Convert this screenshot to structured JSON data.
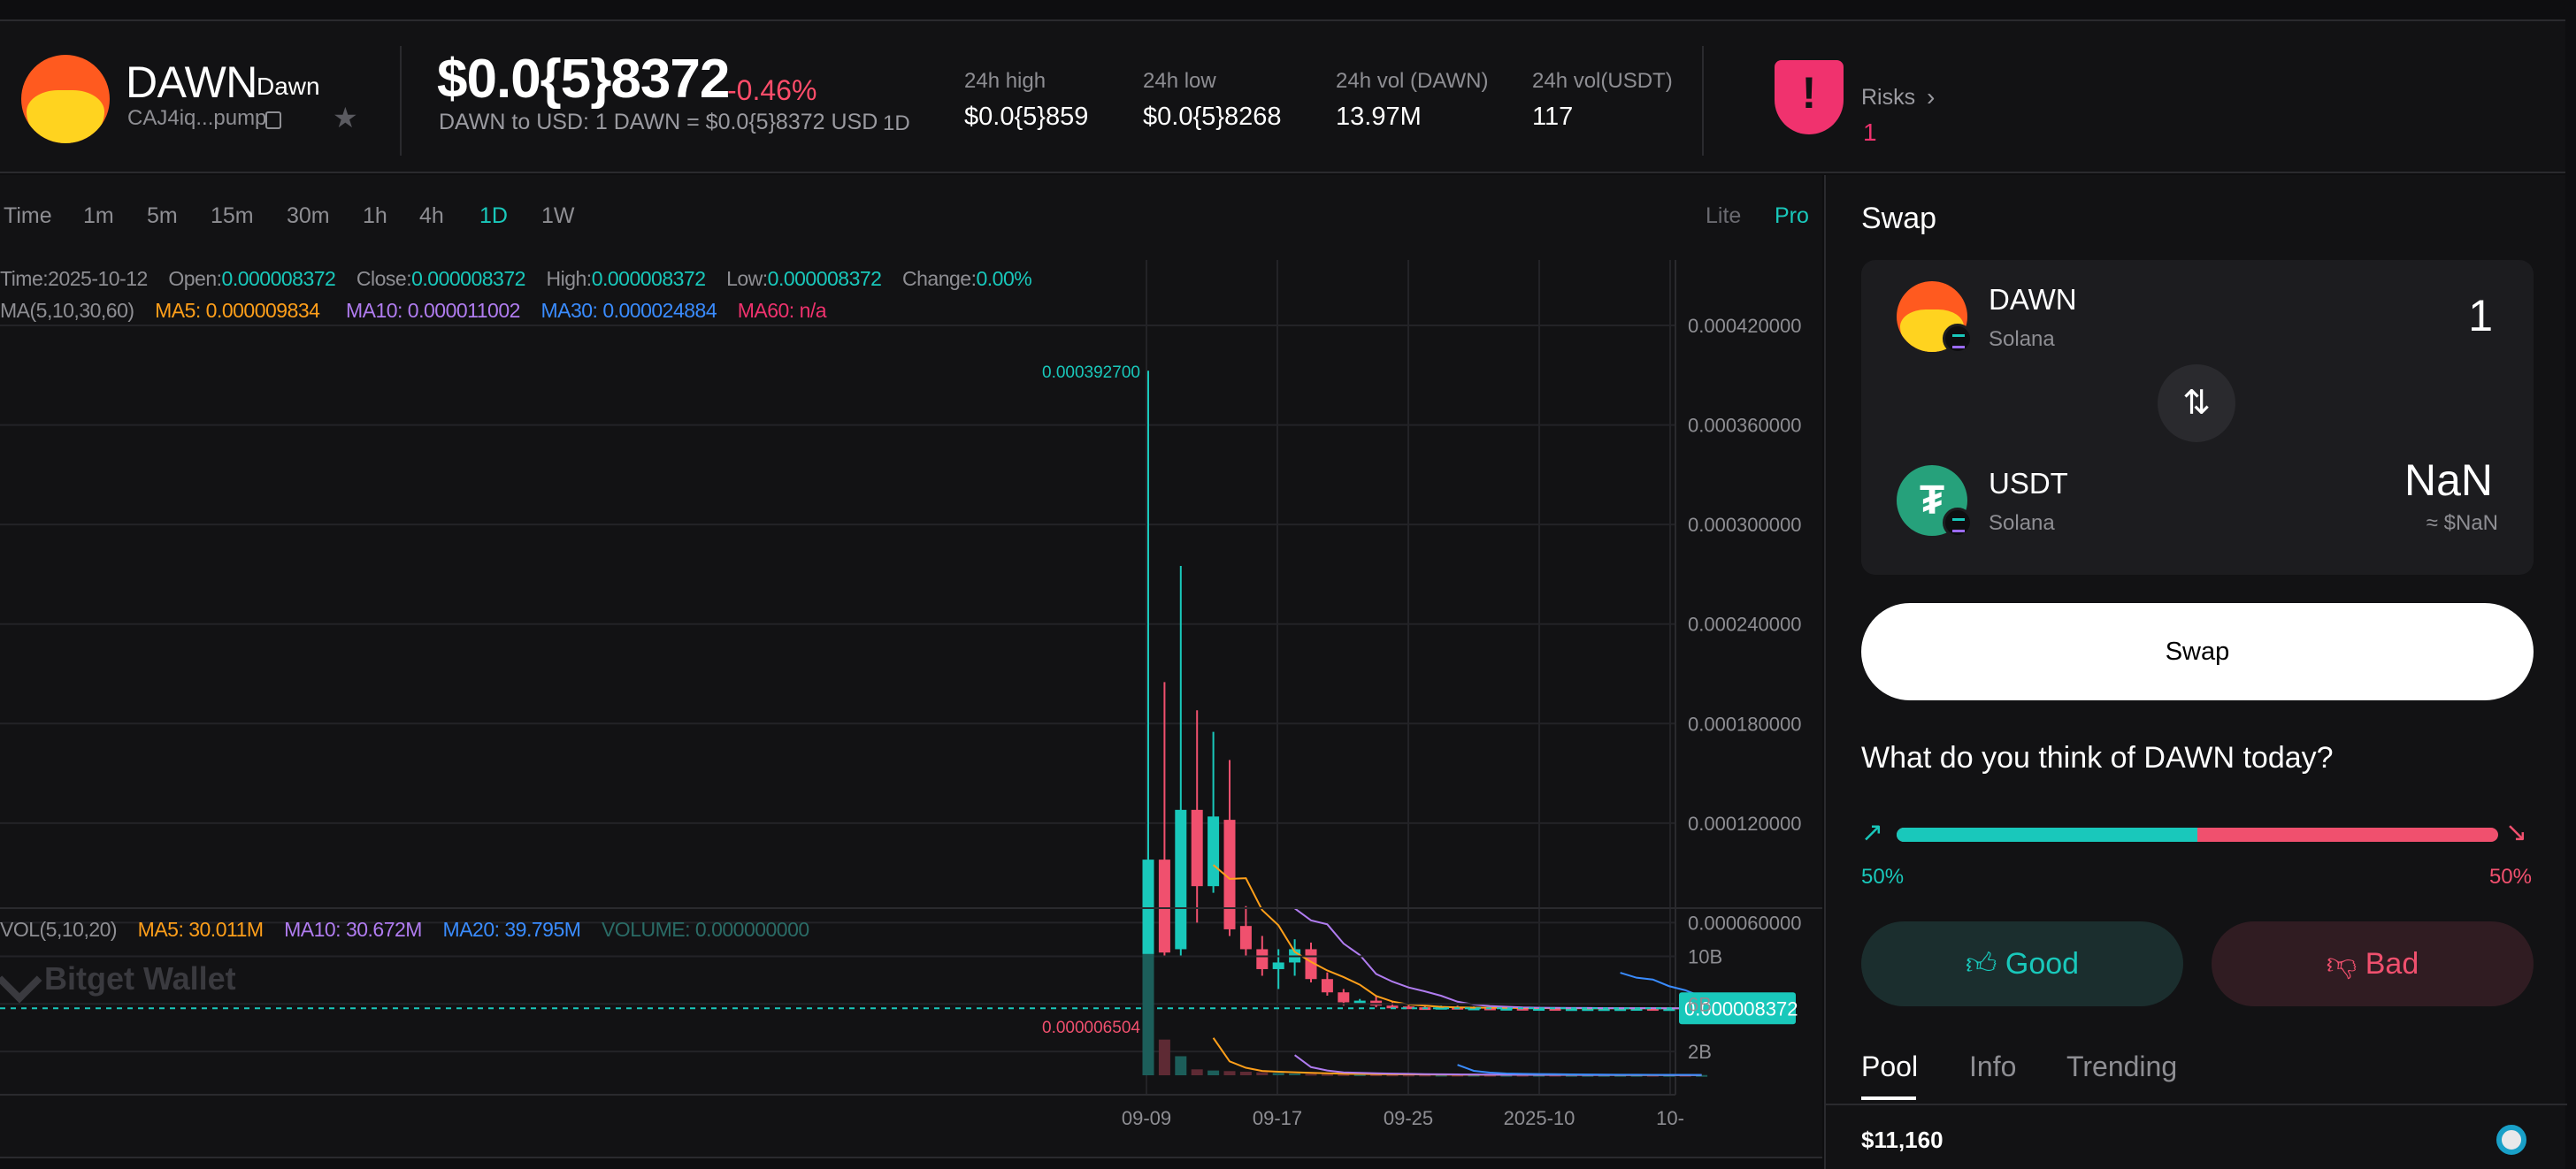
{
  "header": {
    "symbol": "DAWN",
    "name": "Dawn",
    "address": "CAJ4iq...pump",
    "price": "$0.0{5}8372",
    "change": "-0.46%",
    "price_sub": "DAWN to USD: 1 DAWN = $0.0{5}8372 USD",
    "interval": "1D",
    "stats": [
      {
        "label": "24h high",
        "value": "$0.0{5}859"
      },
      {
        "label": "24h low",
        "value": "$0.0{5}8268"
      },
      {
        "label": "24h vol (DAWN)",
        "value": "13.97M"
      },
      {
        "label": "24h vol(USDT)",
        "value": "117"
      }
    ],
    "risks_label": "Risks",
    "risks_value": "1"
  },
  "chart": {
    "timeframes": [
      "Time",
      "1m",
      "5m",
      "15m",
      "30m",
      "1h",
      "4h",
      "1D",
      "1W"
    ],
    "active_timeframe": "1D",
    "modes": [
      "Lite",
      "Pro"
    ],
    "active_mode": "Pro",
    "ohlc": {
      "time_label": "Time:",
      "time": "2025-10-12",
      "open_label": "Open:",
      "open": "0.000008372",
      "close_label": "Close:",
      "close": "0.000008372",
      "high_label": "High:",
      "high": "0.000008372",
      "low_label": "Low:",
      "low": "0.000008372",
      "change_label": "Change:",
      "change": "0.00%"
    },
    "ma": {
      "label": "MA(5,10,30,60)",
      "ma5": "MA5: 0.000009834",
      "ma10": "MA10: 0.000011002",
      "ma30": "MA30: 0.000024884",
      "ma60": "MA60: n/a"
    },
    "vol": {
      "label": "VOL(5,10,20)",
      "ma5": "MA5: 30.011M",
      "ma10": "MA10: 30.672M",
      "ma20": "MA20: 39.795M",
      "volume": "VOLUME: 0.000000000"
    },
    "watermark": "Bitget Wallet",
    "colors": {
      "up": "#19c8bb",
      "down": "#f0506e",
      "ma5": "#ff9f1a",
      "ma10": "#b07cf0",
      "ma30": "#3a8cff",
      "ma60": "#f0326e"
    }
  },
  "chart_data": {
    "type": "candlestick",
    "price_axis": {
      "ticks": [
        "0.000420000",
        "0.000360000",
        "0.000300000",
        "0.000240000",
        "0.000180000",
        "0.000120000",
        "0.000060000"
      ],
      "range": [
        0,
        0.00042
      ],
      "current_price_label": "0.000008372"
    },
    "volume_axis": {
      "ticks": [
        "10B",
        "6B",
        "2B"
      ]
    },
    "x_ticks": [
      "09-09",
      "09-17",
      "09-25",
      "2025-10",
      "10-"
    ],
    "max_label": "0.000392700",
    "min_label": "0.000006504",
    "candles": [
      {
        "o": 7.5e-06,
        "h": 0.0003927,
        "l": 6.5e-06,
        "c": 9.8e-05
      },
      {
        "o": 9.8e-05,
        "h": 0.000205,
        "l": 4e-05,
        "c": 4.2e-05
      },
      {
        "o": 4.4e-05,
        "h": 0.000275,
        "l": 4e-05,
        "c": 0.000128
      },
      {
        "o": 0.000128,
        "h": 0.000188,
        "l": 6e-05,
        "c": 8.2e-05
      },
      {
        "o": 8.2e-05,
        "h": 0.000175,
        "l": 7.8e-05,
        "c": 0.000124
      },
      {
        "o": 0.000122,
        "h": 0.000158,
        "l": 5.2e-05,
        "c": 5.6e-05
      },
      {
        "o": 5.8e-05,
        "h": 7e-05,
        "l": 4e-05,
        "c": 4.4e-05
      },
      {
        "o": 4.4e-05,
        "h": 5.2e-05,
        "l": 2.8e-05,
        "c": 3.2e-05
      },
      {
        "o": 3.2e-05,
        "h": 4.4e-05,
        "l": 2e-05,
        "c": 3.6e-05
      },
      {
        "o": 3.6e-05,
        "h": 5e-05,
        "l": 2.8e-05,
        "c": 4.4e-05
      },
      {
        "o": 4.4e-05,
        "h": 4.8e-05,
        "l": 2.4e-05,
        "c": 2.6e-05
      },
      {
        "o": 2.6e-05,
        "h": 3e-05,
        "l": 1.6e-05,
        "c": 1.8e-05
      },
      {
        "o": 1.8e-05,
        "h": 2e-05,
        "l": 1e-05,
        "c": 1.2e-05
      },
      {
        "o": 1.2e-05,
        "h": 1.4e-05,
        "l": 1.1e-05,
        "c": 1.3e-05
      },
      {
        "o": 1.3e-05,
        "h": 1.6e-05,
        "l": 9e-06,
        "c": 1e-05
      },
      {
        "o": 1e-05,
        "h": 1.2e-05,
        "l": 8e-06,
        "c": 9.5e-06
      },
      {
        "o": 9.5e-06,
        "h": 1.1e-05,
        "l": 8e-06,
        "c": 9e-06
      },
      {
        "o": 9e-06,
        "h": 1.05e-05,
        "l": 8e-06,
        "c": 8.5e-06
      },
      {
        "o": 8.5e-06,
        "h": 1e-05,
        "l": 8e-06,
        "c": 9.2e-06
      },
      {
        "o": 9.2e-06,
        "h": 1e-05,
        "l": 8e-06,
        "c": 8.6e-06
      },
      {
        "o": 8.6e-06,
        "h": 9.5e-06,
        "l": 8e-06,
        "c": 8.8e-06
      },
      {
        "o": 8.8e-06,
        "h": 9.5e-06,
        "l": 8e-06,
        "c": 8.4e-06
      },
      {
        "o": 8.4e-06,
        "h": 9e-06,
        "l": 8e-06,
        "c": 8.6e-06
      },
      {
        "o": 8.6e-06,
        "h": 9e-06,
        "l": 8e-06,
        "c": 8.4e-06
      },
      {
        "o": 8.4e-06,
        "h": 9e-06,
        "l": 8e-06,
        "c": 8.5e-06
      },
      {
        "o": 8.5e-06,
        "h": 9e-06,
        "l": 8e-06,
        "c": 8.4e-06
      },
      {
        "o": 8.4e-06,
        "h": 8.8e-06,
        "l": 8e-06,
        "c": 8.4e-06
      },
      {
        "o": 8.4e-06,
        "h": 8.8e-06,
        "l": 8e-06,
        "c": 8.4e-06
      },
      {
        "o": 8.4e-06,
        "h": 8.8e-06,
        "l": 8e-06,
        "c": 8.4e-06
      },
      {
        "o": 8.4e-06,
        "h": 8.7e-06,
        "l": 8e-06,
        "c": 8.4e-06
      },
      {
        "o": 8.4e-06,
        "h": 8.7e-06,
        "l": 8e-06,
        "c": 8.5e-06
      },
      {
        "o": 8.5e-06,
        "h": 8.7e-06,
        "l": 8e-06,
        "c": 8.4e-06
      },
      {
        "o": 8.4e-06,
        "h": 8.6e-06,
        "l": 8.2e-06,
        "c": 8.4e-06
      },
      {
        "o": 8.4e-06,
        "h": 8.6e-06,
        "l": 8.2e-06,
        "c": 8.3e-06
      },
      {
        "o": 8.3e-06,
        "h": 8.6e-06,
        "l": 8.2e-06,
        "c": 8.4e-06
      }
    ],
    "volumes": [
      10.2,
      3.0,
      1.6,
      0.5,
      0.4,
      0.35,
      0.3,
      0.25,
      0.2,
      0.15,
      0.12,
      0.1,
      0.09,
      0.08,
      0.07,
      0.06,
      0.05,
      0.05,
      0.04,
      0.04,
      0.04,
      0.03,
      0.03,
      0.03,
      0.03,
      0.03,
      0.02,
      0.02,
      0.02,
      0.02,
      0.02,
      0.02,
      0.02,
      0.02,
      0.02
    ]
  },
  "swap": {
    "title": "Swap",
    "from": {
      "symbol": "DAWN",
      "chain": "Solana",
      "amount": "1"
    },
    "to": {
      "symbol": "USDT",
      "chain": "Solana",
      "amount": "NaN",
      "usd": "≈ $NaN"
    },
    "button": "Swap",
    "question": "What do you think of DAWN today?",
    "good_pct": "50%",
    "bad_pct": "50%",
    "good_fraction": 0.5,
    "good_label": "Good",
    "bad_label": "Bad",
    "tabs": [
      "Pool",
      "Info",
      "Trending"
    ],
    "pool_value": "$11,160"
  }
}
